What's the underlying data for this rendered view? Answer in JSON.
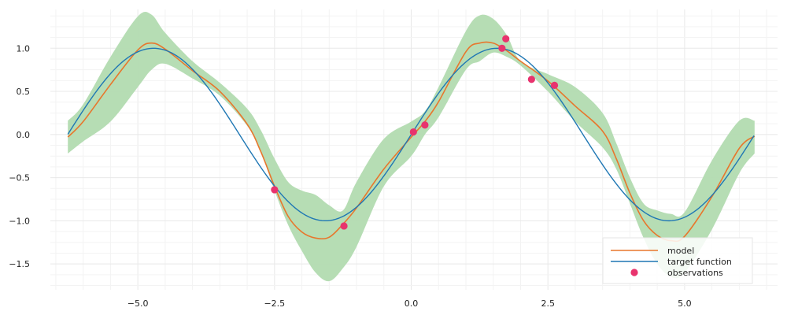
{
  "chart_data": {
    "type": "line",
    "title": "",
    "xlabel": "",
    "ylabel": "",
    "xlim": [
      -6.6,
      6.7
    ],
    "ylim": [
      -1.8,
      1.45
    ],
    "grid": true,
    "legend_position": "bottom-right",
    "xticks": [
      {
        "value": -5.0,
        "label": "−5.0"
      },
      {
        "value": -2.5,
        "label": "−2.5"
      },
      {
        "value": 0.0,
        "label": "0.0"
      },
      {
        "value": 2.5,
        "label": "2.5"
      },
      {
        "value": 5.0,
        "label": "5.0"
      }
    ],
    "yticks": [
      {
        "value": 1.0,
        "label": "1.0"
      },
      {
        "value": 0.5,
        "label": "0.5"
      },
      {
        "value": 0.0,
        "label": "0.0"
      },
      {
        "value": -0.5,
        "label": "−0.5"
      },
      {
        "value": -1.0,
        "label": "−1.0"
      },
      {
        "value": -1.5,
        "label": "−1.5"
      }
    ],
    "band": {
      "color": "#b2dbb0",
      "x": [
        -6.28,
        -6.0,
        -5.5,
        -5.0,
        -4.75,
        -4.5,
        -4.0,
        -3.5,
        -3.0,
        -2.75,
        -2.5,
        -2.25,
        -2.0,
        -1.75,
        -1.5,
        -1.25,
        -1.0,
        -0.5,
        0.0,
        0.25,
        0.5,
        1.0,
        1.25,
        1.5,
        1.75,
        2.0,
        2.5,
        3.0,
        3.5,
        3.75,
        4.0,
        4.25,
        4.5,
        4.75,
        5.0,
        5.5,
        6.0,
        6.28
      ],
      "upper": [
        0.16,
        0.35,
        0.9,
        1.37,
        1.39,
        1.18,
        0.85,
        0.6,
        0.3,
        0.05,
        -0.28,
        -0.55,
        -0.65,
        -0.7,
        -0.82,
        -0.88,
        -0.55,
        -0.05,
        0.15,
        0.27,
        0.55,
        1.2,
        1.38,
        1.34,
        1.15,
        0.85,
        0.7,
        0.55,
        0.25,
        -0.1,
        -0.5,
        -0.8,
        -0.88,
        -0.92,
        -0.9,
        -0.3,
        0.16,
        0.16
      ],
      "lower": [
        -0.22,
        -0.08,
        0.15,
        0.55,
        0.75,
        0.82,
        0.65,
        0.45,
        0.1,
        -0.2,
        -0.65,
        -1.05,
        -1.35,
        -1.6,
        -1.7,
        -1.55,
        -1.3,
        -0.6,
        -0.25,
        0.0,
        0.2,
        0.75,
        0.85,
        0.95,
        0.9,
        0.8,
        0.5,
        0.15,
        -0.15,
        -0.4,
        -0.8,
        -1.2,
        -1.5,
        -1.65,
        -1.6,
        -1.1,
        -0.45,
        -0.22
      ]
    },
    "series": [
      {
        "name": "model",
        "color": "#e8762c",
        "x": [
          -6.28,
          -6.0,
          -5.5,
          -5.0,
          -4.75,
          -4.5,
          -4.0,
          -3.5,
          -3.0,
          -2.75,
          -2.5,
          -2.25,
          -2.0,
          -1.75,
          -1.5,
          -1.25,
          -1.0,
          -0.5,
          0.0,
          0.25,
          0.5,
          1.0,
          1.25,
          1.5,
          1.75,
          2.0,
          2.5,
          3.0,
          3.5,
          3.75,
          4.0,
          4.25,
          4.5,
          4.75,
          5.0,
          5.5,
          6.0,
          6.28
        ],
        "y": [
          -0.03,
          0.15,
          0.58,
          0.98,
          1.06,
          0.99,
          0.74,
          0.5,
          0.12,
          -0.2,
          -0.6,
          -0.95,
          -1.13,
          -1.2,
          -1.19,
          -1.04,
          -0.85,
          -0.4,
          -0.03,
          0.15,
          0.38,
          0.96,
          1.06,
          1.06,
          0.97,
          0.85,
          0.62,
          0.33,
          0.04,
          -0.28,
          -0.68,
          -1.0,
          -1.17,
          -1.23,
          -1.18,
          -0.72,
          -0.16,
          -0.02
        ]
      },
      {
        "name": "target function",
        "color": "#1f77b4",
        "function": "sin",
        "x_start": -6.28,
        "x_end": 6.28
      }
    ],
    "observations": {
      "name": "observations",
      "color": "#e8336e",
      "x": [
        -2.5,
        -1.23,
        0.04,
        0.25,
        1.66,
        1.73,
        2.2,
        2.62
      ],
      "y": [
        -0.64,
        -1.06,
        0.03,
        0.11,
        1.0,
        1.11,
        0.64,
        0.57
      ]
    }
  }
}
